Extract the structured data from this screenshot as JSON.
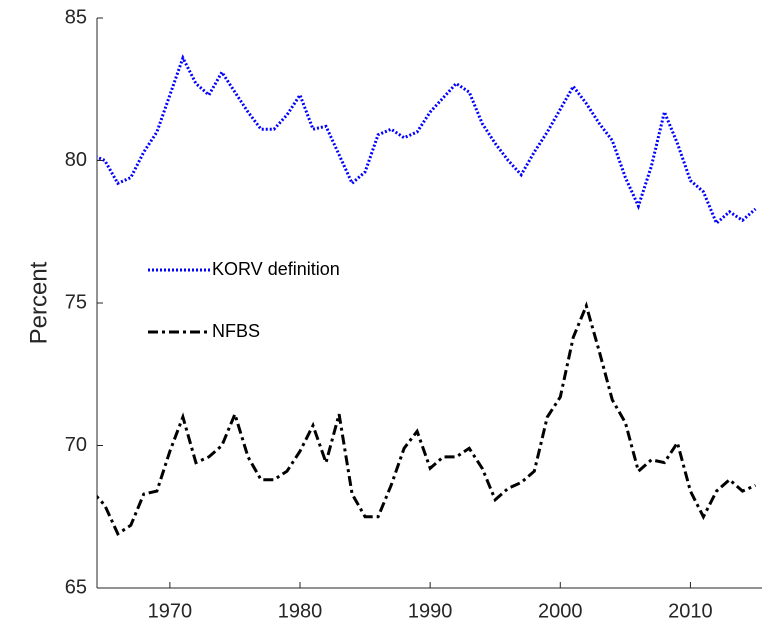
{
  "chart_data": {
    "type": "line",
    "y_label": "Percent",
    "x": [
      1964,
      1965,
      1966,
      1967,
      1968,
      1969,
      1970,
      1971,
      1972,
      1973,
      1974,
      1975,
      1976,
      1977,
      1978,
      1979,
      1980,
      1981,
      1982,
      1983,
      1984,
      1985,
      1986,
      1987,
      1988,
      1989,
      1990,
      1991,
      1992,
      1993,
      1994,
      1995,
      1996,
      1997,
      1998,
      1999,
      2000,
      2001,
      2002,
      2003,
      2004,
      2005,
      2006,
      2007,
      2008,
      2009,
      2010,
      2011,
      2012,
      2013,
      2014,
      2015
    ],
    "series": [
      {
        "name": "KORV definition",
        "color": "#0000ff",
        "dash": "dotted",
        "values": [
          80.2,
          80.0,
          79.2,
          79.4,
          80.3,
          81.0,
          82.3,
          83.6,
          82.7,
          82.3,
          83.1,
          82.4,
          81.7,
          81.1,
          81.1,
          81.6,
          82.3,
          81.1,
          81.2,
          80.2,
          79.2,
          79.6,
          80.9,
          81.1,
          80.8,
          81.0,
          81.7,
          82.2,
          82.7,
          82.4,
          81.3,
          80.6,
          80.0,
          79.5,
          80.3,
          81.0,
          81.8,
          82.6,
          82.0,
          81.3,
          80.7,
          79.4,
          78.4,
          79.8,
          81.7,
          80.6,
          79.3,
          78.9,
          77.8,
          78.2,
          77.9,
          78.3
        ]
      },
      {
        "name": "NFBS",
        "color": "#000000",
        "dash": "dashdot",
        "values": [
          68.4,
          67.9,
          66.9,
          67.2,
          68.3,
          68.4,
          69.8,
          71.0,
          69.4,
          69.6,
          70.0,
          71.1,
          69.6,
          68.8,
          68.8,
          69.1,
          69.8,
          70.7,
          69.4,
          71.1,
          68.3,
          67.5,
          67.5,
          68.6,
          69.9,
          70.5,
          69.2,
          69.6,
          69.6,
          69.9,
          69.2,
          68.1,
          68.5,
          68.7,
          69.1,
          71.0,
          71.7,
          73.8,
          74.9,
          73.3,
          71.6,
          70.8,
          69.1,
          69.5,
          69.4,
          70.1,
          68.4,
          67.5,
          68.4,
          68.8,
          68.4,
          68.6
        ]
      }
    ],
    "xlim": [
      1964.4,
      2015.5
    ],
    "xticks": [
      1970,
      1980,
      1990,
      2000,
      2010
    ],
    "ylim": [
      65,
      85
    ],
    "yticks": [
      65,
      70,
      75,
      80,
      85
    ],
    "grid": false,
    "legend": "left"
  }
}
